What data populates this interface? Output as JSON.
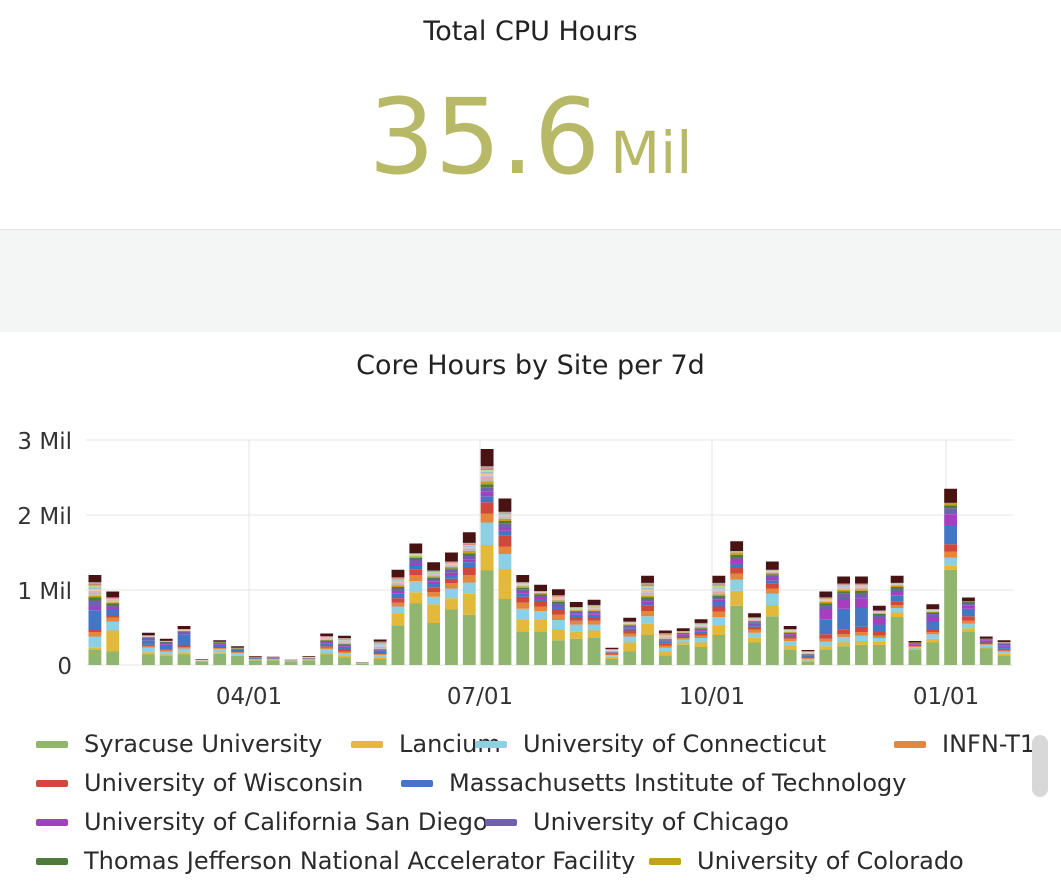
{
  "stat": {
    "title": "Total CPU Hours",
    "value": "35.6",
    "unit": "Mil",
    "color": "#b8b966"
  },
  "chart_title": "Core Hours by Site per 7d",
  "chart_data": {
    "type": "bar",
    "stacked": true,
    "title": "Core Hours by Site per 7d",
    "x_tick_labels": [
      "04/01",
      "07/01",
      "10/01",
      "01/01"
    ],
    "y_tick_labels": [
      "0",
      "1 Mil",
      "2 Mil",
      "3 Mil"
    ],
    "ylim": [
      0,
      3000000
    ],
    "grid": true,
    "legend_position": "bottom",
    "series": [
      {
        "name": "Syracuse University",
        "color": "#8fb56e"
      },
      {
        "name": "Lancium",
        "color": "#e2b93b"
      },
      {
        "name": "University of Connecticut",
        "color": "#8dcfe3"
      },
      {
        "name": "INFN-T1",
        "color": "#e5863a"
      },
      {
        "name": "University of Wisconsin",
        "color": "#d0473b"
      },
      {
        "name": "Massachusetts Institute of Technology",
        "color": "#4476c6"
      },
      {
        "name": "University of California San Diego",
        "color": "#a63ec0"
      },
      {
        "name": "University of Chicago",
        "color": "#7160ae"
      },
      {
        "name": "Thomas Jefferson National Accelerator Facility",
        "color": "#4f7b3a"
      },
      {
        "name": "University of Colorado",
        "color": "#c1a21a"
      }
    ],
    "other_colors": [
      "#bbbbbb",
      "#e4a5a5",
      "#c9b8dc",
      "#f0c58d",
      "#9dbbd7",
      "#b9d98f",
      "#d77a7a",
      "#a7a7a7"
    ],
    "top_color": "#4a1313",
    "weeks": [
      {
        "total": 1200000,
        "s": [
          200000,
          30000,
          150000,
          60000,
          40000,
          250000,
          50000,
          80000,
          40000,
          20000
        ]
      },
      {
        "total": 980000,
        "s": [
          180000,
          280000,
          120000,
          50000,
          30000,
          80000,
          20000,
          40000,
          20000,
          15000
        ]
      },
      {
        "total": 0,
        "s": []
      },
      {
        "total": 430000,
        "s": [
          140000,
          30000,
          60000,
          20000,
          20000,
          60000,
          10000,
          20000,
          10000,
          5000
        ]
      },
      {
        "total": 350000,
        "s": [
          120000,
          20000,
          40000,
          15000,
          15000,
          60000,
          10000,
          20000,
          10000,
          5000
        ]
      },
      {
        "total": 520000,
        "s": [
          140000,
          30000,
          50000,
          20000,
          20000,
          150000,
          10000,
          20000,
          10000,
          5000
        ]
      },
      {
        "total": 80000,
        "s": [
          50000,
          0,
          0,
          0,
          0,
          0,
          0,
          0,
          0,
          0
        ]
      },
      {
        "total": 330000,
        "s": [
          150000,
          20000,
          40000,
          15000,
          15000,
          30000,
          10000,
          15000,
          10000,
          5000
        ]
      },
      {
        "total": 250000,
        "s": [
          120000,
          10000,
          30000,
          10000,
          10000,
          20000,
          5000,
          10000,
          5000,
          5000
        ]
      },
      {
        "total": 120000,
        "s": [
          60000,
          5000,
          10000,
          5000,
          5000,
          10000,
          0,
          5000,
          5000,
          0
        ]
      },
      {
        "total": 110000,
        "s": [
          60000,
          5000,
          10000,
          5000,
          5000,
          5000,
          0,
          5000,
          0,
          0
        ]
      },
      {
        "total": 70000,
        "s": [
          50000,
          0,
          0,
          0,
          0,
          0,
          0,
          0,
          0,
          0
        ]
      },
      {
        "total": 120000,
        "s": [
          60000,
          5000,
          10000,
          5000,
          5000,
          5000,
          0,
          5000,
          0,
          0
        ]
      },
      {
        "total": 420000,
        "s": [
          140000,
          20000,
          50000,
          20000,
          20000,
          40000,
          10000,
          20000,
          10000,
          5000
        ]
      },
      {
        "total": 390000,
        "s": [
          100000,
          20000,
          40000,
          20000,
          20000,
          40000,
          10000,
          20000,
          10000,
          5000
        ]
      },
      {
        "total": 40000,
        "s": [
          20000,
          0,
          0,
          0,
          0,
          0,
          0,
          0,
          0,
          0
        ]
      },
      {
        "total": 340000,
        "s": [
          80000,
          20000,
          30000,
          15000,
          15000,
          20000,
          10000,
          10000,
          10000,
          5000
        ]
      },
      {
        "total": 1270000,
        "s": [
          530000,
          150000,
          100000,
          50000,
          60000,
          60000,
          30000,
          40000,
          20000,
          20000
        ]
      },
      {
        "total": 1620000,
        "s": [
          820000,
          150000,
          150000,
          80000,
          70000,
          50000,
          40000,
          40000,
          30000,
          20000
        ]
      },
      {
        "total": 1370000,
        "s": [
          560000,
          250000,
          100000,
          60000,
          60000,
          50000,
          30000,
          30000,
          20000,
          20000
        ]
      },
      {
        "total": 1500000,
        "s": [
          740000,
          150000,
          130000,
          70000,
          60000,
          50000,
          30000,
          40000,
          20000,
          20000
        ]
      },
      {
        "total": 1770000,
        "s": [
          670000,
          280000,
          150000,
          100000,
          100000,
          70000,
          40000,
          50000,
          30000,
          30000
        ]
      },
      {
        "total": 2880000,
        "s": [
          1260000,
          340000,
          300000,
          120000,
          150000,
          80000,
          60000,
          60000,
          40000,
          40000
        ]
      },
      {
        "total": 2220000,
        "s": [
          880000,
          400000,
          200000,
          100000,
          150000,
          60000,
          50000,
          50000,
          30000,
          30000
        ]
      },
      {
        "total": 1200000,
        "s": [
          450000,
          150000,
          150000,
          80000,
          80000,
          40000,
          30000,
          30000,
          20000,
          20000
        ]
      },
      {
        "total": 1070000,
        "s": [
          450000,
          150000,
          120000,
          60000,
          60000,
          40000,
          20000,
          20000,
          20000,
          20000
        ]
      },
      {
        "total": 1010000,
        "s": [
          330000,
          150000,
          120000,
          70000,
          70000,
          40000,
          20000,
          20000,
          20000,
          20000
        ]
      },
      {
        "total": 840000,
        "s": [
          350000,
          100000,
          90000,
          50000,
          50000,
          30000,
          20000,
          20000,
          10000,
          10000
        ]
      },
      {
        "total": 870000,
        "s": [
          360000,
          100000,
          80000,
          50000,
          50000,
          30000,
          20000,
          20000,
          10000,
          10000
        ]
      },
      {
        "total": 230000,
        "s": [
          80000,
          30000,
          20000,
          10000,
          10000,
          10000,
          5000,
          5000,
          5000,
          5000
        ]
      },
      {
        "total": 630000,
        "s": [
          180000,
          120000,
          80000,
          40000,
          40000,
          30000,
          15000,
          15000,
          10000,
          10000
        ]
      },
      {
        "total": 1190000,
        "s": [
          400000,
          150000,
          100000,
          70000,
          70000,
          30000,
          30000,
          30000,
          20000,
          20000
        ]
      },
      {
        "total": 460000,
        "s": [
          130000,
          50000,
          50000,
          30000,
          30000,
          20000,
          10000,
          10000,
          10000,
          10000
        ]
      },
      {
        "total": 490000,
        "s": [
          270000,
          30000,
          40000,
          20000,
          20000,
          20000,
          10000,
          10000,
          10000,
          5000
        ]
      },
      {
        "total": 610000,
        "s": [
          240000,
          60000,
          60000,
          30000,
          30000,
          30000,
          15000,
          15000,
          10000,
          10000
        ]
      },
      {
        "total": 1190000,
        "s": [
          400000,
          120000,
          120000,
          70000,
          70000,
          60000,
          30000,
          30000,
          20000,
          20000
        ]
      },
      {
        "total": 1650000,
        "s": [
          790000,
          200000,
          150000,
          80000,
          80000,
          60000,
          40000,
          40000,
          30000,
          30000
        ]
      },
      {
        "total": 690000,
        "s": [
          300000,
          70000,
          60000,
          40000,
          40000,
          30000,
          15000,
          15000,
          10000,
          10000
        ]
      },
      {
        "total": 1380000,
        "s": [
          650000,
          150000,
          150000,
          70000,
          70000,
          40000,
          30000,
          30000,
          20000,
          20000
        ]
      },
      {
        "total": 520000,
        "s": [
          200000,
          60000,
          60000,
          30000,
          30000,
          20000,
          10000,
          10000,
          10000,
          10000
        ]
      },
      {
        "total": 200000,
        "s": [
          40000,
          20000,
          20000,
          10000,
          10000,
          20000,
          10000,
          10000,
          5000,
          5000
        ]
      },
      {
        "total": 980000,
        "s": [
          210000,
          40000,
          60000,
          40000,
          60000,
          200000,
          130000,
          60000,
          20000,
          20000
        ]
      },
      {
        "total": 1180000,
        "s": [
          250000,
          50000,
          70000,
          40000,
          60000,
          280000,
          130000,
          70000,
          30000,
          20000
        ]
      },
      {
        "total": 1180000,
        "s": [
          270000,
          50000,
          70000,
          50000,
          70000,
          250000,
          130000,
          70000,
          30000,
          20000
        ]
      },
      {
        "total": 790000,
        "s": [
          270000,
          40000,
          50000,
          30000,
          50000,
          100000,
          80000,
          40000,
          20000,
          10000
        ]
      },
      {
        "total": 1190000,
        "s": [
          640000,
          60000,
          60000,
          40000,
          50000,
          80000,
          50000,
          40000,
          20000,
          20000
        ]
      },
      {
        "total": 320000,
        "s": [
          200000,
          20000,
          20000,
          10000,
          10000,
          10000,
          10000,
          10000,
          5000,
          5000
        ]
      },
      {
        "total": 810000,
        "s": [
          300000,
          50000,
          60000,
          30000,
          40000,
          100000,
          60000,
          40000,
          20000,
          10000
        ]
      },
      {
        "total": 2350000,
        "s": [
          1270000,
          60000,
          100000,
          80000,
          100000,
          250000,
          150000,
          80000,
          40000,
          30000
        ]
      },
      {
        "total": 900000,
        "s": [
          450000,
          40000,
          60000,
          40000,
          60000,
          100000,
          40000,
          30000,
          20000,
          10000
        ]
      },
      {
        "total": 380000,
        "s": [
          220000,
          20000,
          30000,
          10000,
          20000,
          20000,
          10000,
          10000,
          5000,
          5000
        ]
      },
      {
        "total": 330000,
        "s": [
          130000,
          20000,
          30000,
          15000,
          20000,
          30000,
          20000,
          15000,
          10000,
          5000
        ]
      }
    ]
  },
  "scrollbar": {
    "label": "legend-scrollbar"
  }
}
